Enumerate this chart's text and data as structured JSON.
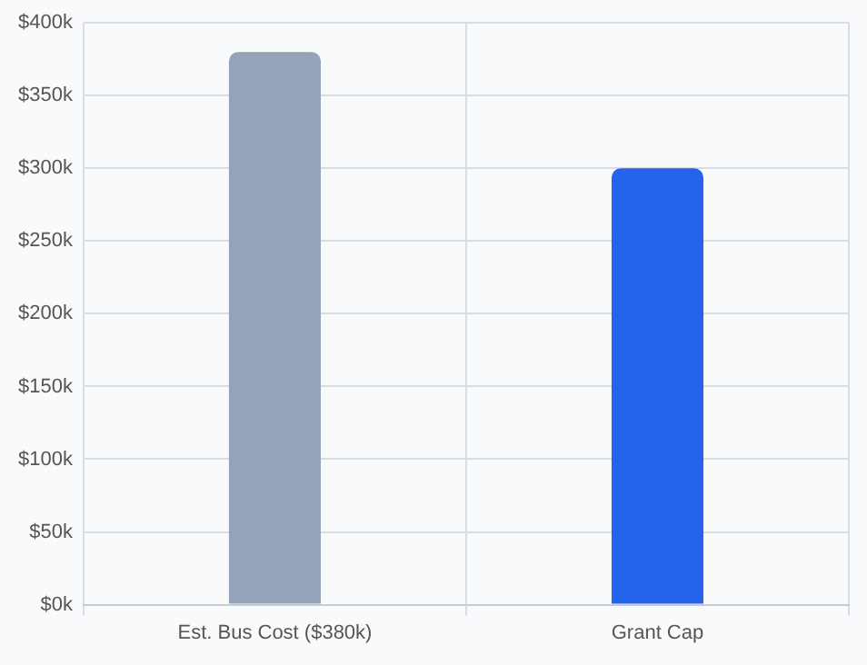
{
  "chart_data": {
    "type": "bar",
    "categories": [
      "Est. Bus Cost ($380k)",
      "Grant Cap"
    ],
    "values": [
      380000,
      300000
    ],
    "colors": [
      "#94a3b8",
      "#2563eb"
    ],
    "ylim": [
      0,
      400000
    ],
    "yticks": [
      {
        "value": 0,
        "label": "$0k"
      },
      {
        "value": 50000,
        "label": "$50k"
      },
      {
        "value": 100000,
        "label": "$100k"
      },
      {
        "value": 150000,
        "label": "$150k"
      },
      {
        "value": 200000,
        "label": "$200k"
      },
      {
        "value": 250000,
        "label": "$250k"
      },
      {
        "value": 300000,
        "label": "$300k"
      },
      {
        "value": 350000,
        "label": "$350k"
      },
      {
        "value": 400000,
        "label": "$400k"
      }
    ],
    "grid": true
  }
}
